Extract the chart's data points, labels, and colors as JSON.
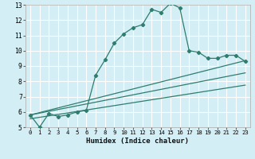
{
  "xlabel": "Humidex (Indice chaleur)",
  "background_color": "#d4eef5",
  "grid_color": "#ffffff",
  "line_color": "#2e7d6e",
  "xlim": [
    -0.5,
    23.5
  ],
  "ylim": [
    5,
    13
  ],
  "yticks": [
    5,
    6,
    7,
    8,
    9,
    10,
    11,
    12,
    13
  ],
  "xticks": [
    0,
    1,
    2,
    3,
    4,
    5,
    6,
    7,
    8,
    9,
    10,
    11,
    12,
    13,
    14,
    15,
    16,
    17,
    18,
    19,
    20,
    21,
    22,
    23
  ],
  "main_line_x": [
    0,
    1,
    2,
    3,
    4,
    5,
    6,
    7,
    8,
    9,
    10,
    11,
    12,
    13,
    14,
    15,
    16,
    17,
    18,
    19,
    20,
    21,
    22,
    23
  ],
  "main_line_y": [
    5.8,
    5.0,
    5.9,
    5.7,
    5.8,
    6.0,
    6.1,
    8.4,
    9.4,
    10.5,
    11.1,
    11.5,
    11.7,
    12.7,
    12.5,
    13.1,
    12.8,
    10.0,
    9.9,
    9.5,
    9.5,
    9.7,
    9.7,
    9.3
  ],
  "line2_x": [
    0,
    23
  ],
  "line2_y": [
    5.8,
    9.35
  ],
  "line3_x": [
    0,
    23
  ],
  "line3_y": [
    5.8,
    8.55
  ],
  "line4_x": [
    0,
    23
  ],
  "line4_y": [
    5.55,
    7.75
  ]
}
